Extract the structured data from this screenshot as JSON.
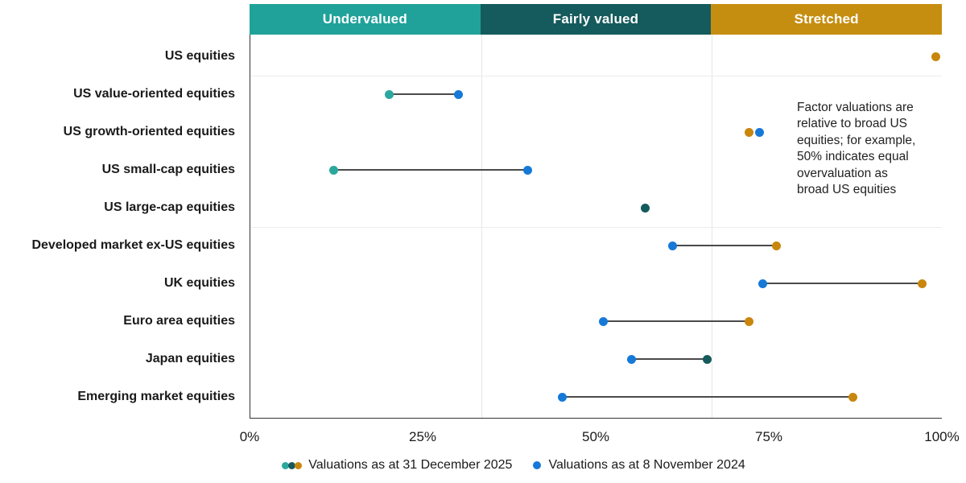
{
  "header": {
    "zones": [
      {
        "name": "undervalued",
        "label": "Undervalued",
        "color": "#20A29B"
      },
      {
        "name": "fairly-valued",
        "label": "Fairly valued",
        "color": "#155A5C"
      },
      {
        "name": "stretched",
        "label": "Stretched",
        "color": "#C68E10"
      }
    ]
  },
  "annotation": {
    "text": "Factor valuations are\nrelative to broad US\nequities; for example,\n50% indicates equal\novervaluation as\nbroad US equities"
  },
  "legend": [
    {
      "label": "Valuations as at 31 December 2025",
      "colors": [
        "#2BA79E",
        "#155A5C",
        "#C8860D"
      ]
    },
    {
      "label": "Valuations as at 8 November 2024",
      "colors": [
        "#1679D8"
      ]
    }
  ],
  "axis": {
    "ticks": [
      {
        "label": "0%",
        "value": 0
      },
      {
        "label": "25%",
        "value": 25
      },
      {
        "label": "50%",
        "value": 50
      },
      {
        "label": "75%",
        "value": 75
      },
      {
        "label": "100%",
        "value": 100
      }
    ]
  },
  "colors": {
    "dot_undervalued": "#2BA79E",
    "dot_fairly_valued": "#155A5C",
    "dot_stretched": "#C8860D",
    "dot_nov2024": "#1679D8",
    "connector": "#4a4a4a"
  },
  "chart_data": {
    "type": "scatter",
    "subtype": "dumbbell-dot-plot",
    "unit": "percent",
    "xlim": [
      0,
      100
    ],
    "x_ticks": [
      "0%",
      "25%",
      "50%",
      "75%",
      "100%"
    ],
    "zones": [
      {
        "label": "Undervalued",
        "range": [
          0,
          33.33
        ]
      },
      {
        "label": "Fairly valued",
        "range": [
          33.33,
          66.67
        ]
      },
      {
        "label": "Stretched",
        "range": [
          66.67,
          100
        ]
      }
    ],
    "series": [
      {
        "name": "Valuations as at 31 December 2025",
        "key": "dec2025"
      },
      {
        "name": "Valuations as at 8 November 2024",
        "key": "nov2024"
      }
    ],
    "rows": [
      {
        "label": "US equities",
        "dec2025": 99,
        "nov2024": null,
        "dec2025_zone": "stretched",
        "connector": false
      },
      {
        "label": "US value-oriented equities",
        "dec2025": 20,
        "nov2024": 30,
        "dec2025_zone": "undervalued",
        "connector": true
      },
      {
        "label": "US growth-oriented equities",
        "dec2025": 72,
        "nov2024": 73.5,
        "dec2025_zone": "stretched",
        "connector": false
      },
      {
        "label": "US small-cap equities",
        "dec2025": 12,
        "nov2024": 40,
        "dec2025_zone": "undervalued",
        "connector": true
      },
      {
        "label": "US large-cap equities",
        "dec2025": 57,
        "nov2024": null,
        "dec2025_zone": "fairly-valued",
        "connector": false
      },
      {
        "label": "Developed market ex-US equities",
        "dec2025": 76,
        "nov2024": 61,
        "dec2025_zone": "stretched",
        "connector": true
      },
      {
        "label": "UK equities",
        "dec2025": 97,
        "nov2024": 74,
        "dec2025_zone": "stretched",
        "connector": true
      },
      {
        "label": "Euro area equities",
        "dec2025": 72,
        "nov2024": 51,
        "dec2025_zone": "stretched",
        "connector": true
      },
      {
        "label": "Japan equities",
        "dec2025": 66,
        "nov2024": 55,
        "dec2025_zone": "fairly-valued",
        "connector": true
      },
      {
        "label": "Emerging market equities",
        "dec2025": 87,
        "nov2024": 45,
        "dec2025_zone": "stretched",
        "connector": true
      }
    ],
    "group_separators_after_row_index": [
      0,
      4
    ],
    "legend_position": "bottom",
    "grid": "vertical-zone-boundaries"
  }
}
